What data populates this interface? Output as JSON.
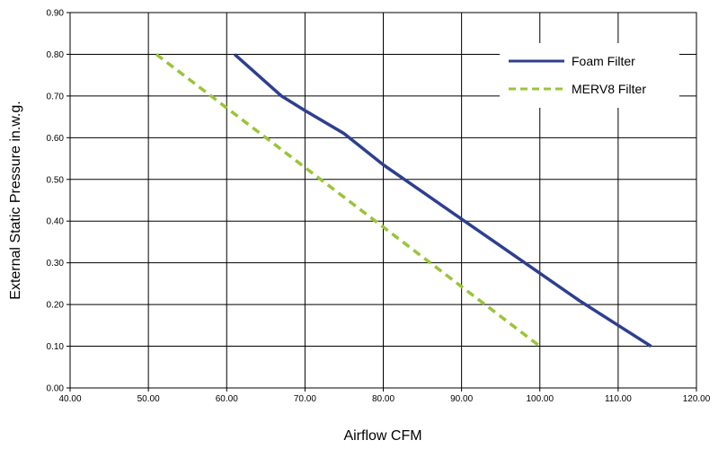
{
  "chart_data": {
    "type": "line",
    "title": "",
    "xlabel": "Airflow CFM",
    "ylabel": "External Static Pressure in.w.g.",
    "xlim": [
      40,
      120
    ],
    "ylim": [
      0,
      0.9
    ],
    "x_ticks": [
      "40.00",
      "50.00",
      "60.00",
      "70.00",
      "80.00",
      "90.00",
      "100.00",
      "110.00",
      "120.00"
    ],
    "y_ticks": [
      "0.00",
      "0.10",
      "0.20",
      "0.30",
      "0.40",
      "0.50",
      "0.60",
      "0.70",
      "0.80",
      "0.90"
    ],
    "grid": true,
    "legend_position": "top-right",
    "series": [
      {
        "name": "Foam Filter",
        "color": "#2E3F8F",
        "style": "solid",
        "points": [
          [
            61,
            0.8
          ],
          [
            64,
            0.75
          ],
          [
            67,
            0.7
          ],
          [
            70,
            0.665
          ],
          [
            75,
            0.61
          ],
          [
            80,
            0.535
          ],
          [
            85,
            0.47
          ],
          [
            90,
            0.405
          ],
          [
            95,
            0.34
          ],
          [
            100,
            0.275
          ],
          [
            105,
            0.21
          ],
          [
            110,
            0.15
          ],
          [
            114.2,
            0.1
          ]
        ]
      },
      {
        "name": "MERV8 Filter",
        "color": "#9BC43A",
        "style": "dashed",
        "points": [
          [
            51,
            0.8
          ],
          [
            100,
            0.1
          ]
        ]
      }
    ]
  }
}
